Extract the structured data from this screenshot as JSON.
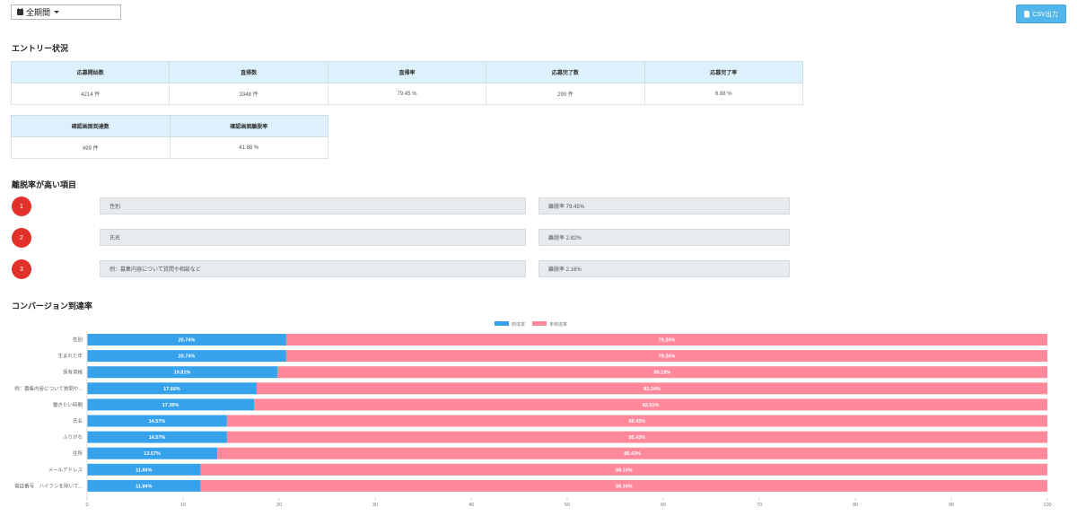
{
  "toolbar": {
    "period": "全期間",
    "csv_label": "CSV出力"
  },
  "entry": {
    "title": "エントリー状況",
    "headers": [
      "応募開始数",
      "直帰数",
      "直帰率",
      "応募完了数",
      "応募完了率"
    ],
    "values": [
      "4214 件",
      "3348 件",
      "79.45 %",
      "290 件",
      "6.88 %"
    ],
    "headers2": [
      "確認画面到達数",
      "確認画面離脱率"
    ],
    "values2": [
      "499 件",
      "41.88 %"
    ]
  },
  "dropout": {
    "title": "離脱率が高い項目",
    "items": [
      {
        "rank": "1",
        "label": "性別",
        "rate": "離脱率 79.45%"
      },
      {
        "rank": "2",
        "label": "氏名",
        "rate": "離脱率 2.82%"
      },
      {
        "rank": "3",
        "label": "例：募集内容について質問や相談など",
        "rate": "離脱率 2.16%"
      }
    ]
  },
  "conversion": {
    "title": "コンバージョン到達率"
  },
  "chart_data": {
    "type": "bar",
    "orientation": "horizontal",
    "stacked": true,
    "categories": [
      "性別",
      "生まれた年",
      "保有資格",
      "例：募集内容について質問や...",
      "働きたい時間",
      "氏名",
      "ふりがな",
      "住所",
      "メールアドレス",
      "電話番号　ハイフンを除いて..."
    ],
    "series": [
      {
        "name": "到達率",
        "color": "#36a2eb",
        "values": [
          20.74,
          20.74,
          19.81,
          17.66,
          17.39,
          14.57,
          14.57,
          13.57,
          11.84,
          11.84
        ],
        "labels": [
          "20.74%",
          "20.74%",
          "19.81%",
          "17.66%",
          "17.39%",
          "14.57%",
          "14.57%",
          "13.57%",
          "11.84%",
          "11.84%"
        ]
      },
      {
        "name": "未到達率",
        "color": "#ff889b",
        "values": [
          79.26,
          79.26,
          80.19,
          82.34,
          82.61,
          85.43,
          85.43,
          86.43,
          88.16,
          88.16
        ],
        "labels": [
          "79.26%",
          "79.26%",
          "80.19%",
          "82.34%",
          "82.61%",
          "85.43%",
          "85.43%",
          "86.43%",
          "88.16%",
          "88.16%"
        ]
      }
    ],
    "xlim": [
      0,
      100
    ],
    "xticks": [
      0,
      10,
      20,
      30,
      40,
      50,
      60,
      70,
      80,
      90,
      100
    ],
    "legend": "top-center",
    "grid": false
  }
}
